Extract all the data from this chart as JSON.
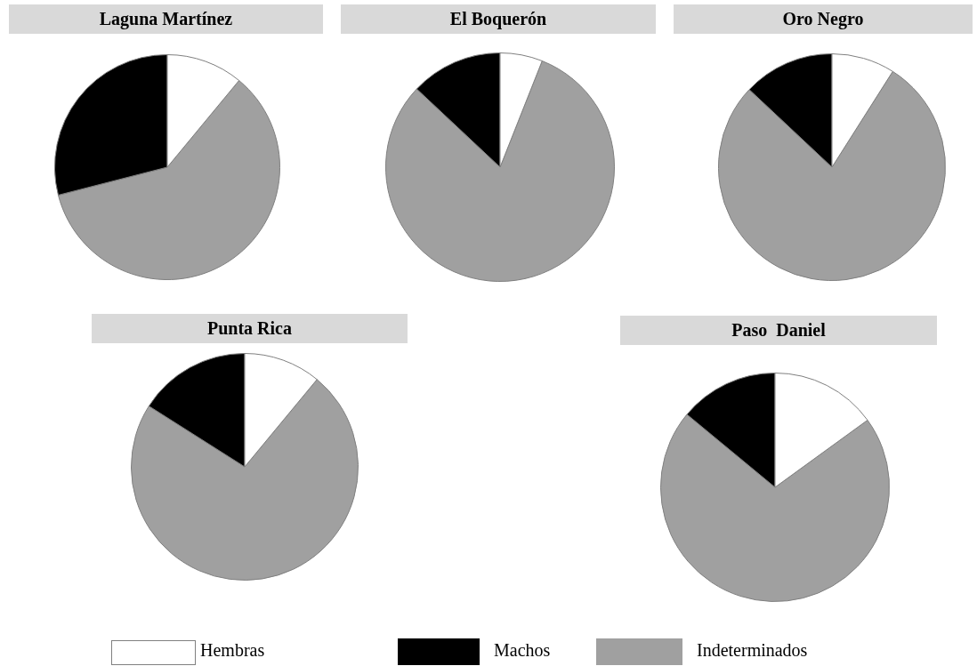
{
  "chart_data": [
    {
      "type": "pie",
      "title": "Laguna Martínez",
      "categories": [
        "Hembras",
        "Machos",
        "Indeterminados"
      ],
      "values": [
        11,
        29,
        60
      ],
      "colors": [
        "#ffffff",
        "#000000",
        "#a0a0a0"
      ],
      "legend": "bottom"
    },
    {
      "type": "pie",
      "title": "El Boquerón",
      "categories": [
        null,
        null,
        null
      ],
      "values": [
        6,
        13,
        81
      ],
      "colors": [
        "#ffffff",
        "#000000",
        "#a0a0a0"
      ]
    },
    {
      "type": "pie",
      "title": "Oro Negro",
      "categories": [
        null,
        null,
        null
      ],
      "values": [
        9,
        13,
        78
      ],
      "colors": [
        "#ffffff",
        "#000000",
        "#a0a0a0"
      ]
    },
    {
      "type": "pie",
      "title": "Punta Rica",
      "categories": [
        null,
        null,
        null
      ],
      "values": [
        11,
        16,
        73
      ],
      "colors": [
        "#ffffff",
        "#000000",
        "#a0a0a0"
      ]
    },
    {
      "type": "pie",
      "title": "Paso  Daniel",
      "categories": [
        null,
        null,
        null
      ],
      "values": [
        15,
        14,
        71
      ],
      "colors": [
        "#ffffff",
        "#000000",
        "#a0a0a0"
      ]
    }
  ]
}
